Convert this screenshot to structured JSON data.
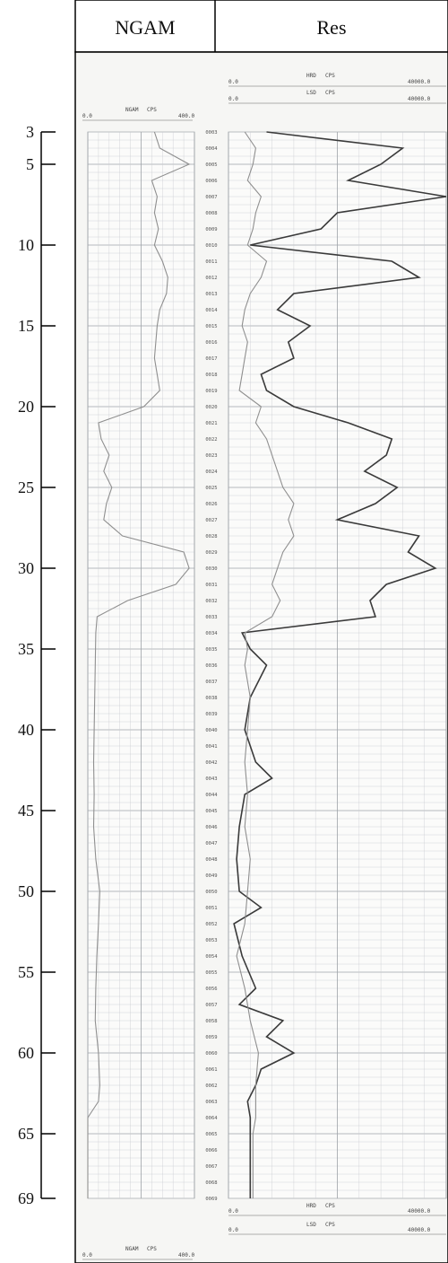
{
  "header": {
    "track1_title": "NGAM",
    "track2_title": "Res"
  },
  "colors": {
    "paper": "#f6f6f4",
    "grid": "#c9ccd0",
    "grid_major": "#9ea3a8",
    "curve_dark": "#3a3a3a",
    "curve_light": "#8f8f8f"
  },
  "scale_labels": {
    "ngam": {
      "min": "0.0",
      "mnemonic": "NGAM",
      "unit": "CPS",
      "max": "400.0"
    },
    "hrd": {
      "min": "0.0",
      "mnemonic": "HRD",
      "unit": "CPS",
      "max": "40000.0"
    },
    "lsd": {
      "min": "0.0",
      "mnemonic": "LSD",
      "unit": "CPS",
      "max": "40000.0"
    }
  },
  "depth_index_labels": [
    "0003",
    "0004",
    "0005",
    "0006",
    "0007",
    "0008",
    "0009",
    "0010",
    "0011",
    "0012",
    "0013",
    "0014",
    "0015",
    "0016",
    "0017",
    "0018",
    "0019",
    "0020",
    "0021",
    "0022",
    "0023",
    "0024",
    "0025",
    "0026",
    "0027",
    "0028",
    "0029",
    "0030",
    "0031",
    "0032",
    "0033",
    "0034",
    "0035",
    "0036",
    "0037",
    "0038",
    "0039",
    "0040",
    "0041",
    "0042",
    "0043",
    "0044",
    "0045",
    "0046",
    "0047",
    "0048",
    "0049",
    "0050",
    "0051",
    "0052",
    "0053",
    "0054",
    "0055",
    "0056",
    "0057",
    "0058",
    "0059",
    "0060",
    "0061",
    "0062",
    "0063",
    "0064",
    "0065",
    "0066",
    "0067",
    "0068",
    "0069"
  ],
  "chart_data": {
    "type": "line",
    "orientation": "vertical-depth",
    "depth_axis": {
      "range": [
        3,
        69
      ],
      "tick_labels": [
        "3",
        "5",
        "10",
        "15",
        "20",
        "25",
        "30",
        "35",
        "40",
        "45",
        "50",
        "55",
        "60",
        "65",
        "69"
      ],
      "ticks": [
        3,
        5,
        10,
        15,
        20,
        25,
        30,
        35,
        40,
        45,
        50,
        55,
        60,
        65,
        69
      ]
    },
    "tracks": [
      {
        "title": "NGAM",
        "xlim": [
          0,
          400
        ],
        "series": [
          {
            "name": "NGAM",
            "depth": [
              3,
              4,
              5,
              6,
              7,
              8,
              9,
              10,
              11,
              12,
              13,
              14,
              15,
              16,
              17,
              18,
              19,
              20,
              21,
              22,
              23,
              24,
              25,
              26,
              27,
              28,
              29,
              30,
              31,
              32,
              33,
              34,
              36,
              38,
              40,
              42,
              44,
              46,
              48,
              50,
              52,
              54,
              56,
              58,
              60,
              62,
              63,
              64,
              65,
              69
            ],
            "values": [
              250,
              270,
              380,
              240,
              260,
              250,
              265,
              250,
              280,
              300,
              295,
              270,
              260,
              255,
              250,
              260,
              270,
              210,
              40,
              50,
              80,
              60,
              90,
              70,
              60,
              130,
              360,
              380,
              330,
              150,
              35,
              30,
              28,
              26,
              24,
              22,
              24,
              22,
              30,
              45,
              40,
              34,
              30,
              28,
              40,
              45,
              40,
              0,
              0,
              0
            ]
          }
        ]
      },
      {
        "title": "Res",
        "xlim": [
          0,
          40000
        ],
        "series": [
          {
            "name": "HRD",
            "depth": [
              3,
              4,
              5,
              6,
              7,
              8,
              9,
              10,
              11,
              12,
              13,
              14,
              15,
              16,
              17,
              18,
              19,
              20,
              21,
              22,
              23,
              24,
              25,
              26,
              27,
              28,
              29,
              30,
              31,
              32,
              33,
              34,
              35,
              36,
              38,
              40,
              42,
              43,
              44,
              46,
              48,
              50,
              51,
              52,
              54,
              56,
              57,
              58,
              59,
              60,
              61,
              62,
              63,
              64,
              65,
              66,
              69
            ],
            "values": [
              7000,
              32000,
              28000,
              22000,
              40000,
              20000,
              17000,
              4000,
              30000,
              35000,
              12000,
              9000,
              15000,
              11000,
              12000,
              6000,
              7000,
              12000,
              22000,
              30000,
              29000,
              25000,
              31000,
              27000,
              20000,
              35000,
              33000,
              38000,
              29000,
              26000,
              27000,
              2500,
              4000,
              7000,
              4000,
              3000,
              5000,
              8000,
              3000,
              2000,
              1500,
              2000,
              6000,
              1000,
              2500,
              5000,
              2000,
              10000,
              7000,
              12000,
              6000,
              5000,
              3500,
              4000,
              4000,
              4000,
              4000
            ]
          },
          {
            "name": "LSD",
            "depth": [
              3,
              4,
              5,
              6,
              7,
              8,
              9,
              10,
              11,
              12,
              13,
              14,
              15,
              16,
              17,
              18,
              19,
              20,
              21,
              22,
              23,
              24,
              25,
              26,
              27,
              28,
              29,
              30,
              31,
              32,
              33,
              34,
              35,
              36,
              38,
              40,
              42,
              44,
              46,
              48,
              50,
              52,
              54,
              56,
              58,
              60,
              62,
              64,
              65,
              69
            ],
            "values": [
              3000,
              5000,
              4500,
              3500,
              6000,
              5000,
              4500,
              3500,
              7000,
              6000,
              4000,
              3000,
              2500,
              3500,
              3000,
              2500,
              2000,
              6000,
              5000,
              7000,
              8000,
              9000,
              10000,
              12000,
              11000,
              12000,
              10000,
              9000,
              8000,
              9500,
              8000,
              3000,
              3500,
              3000,
              4000,
              3500,
              3000,
              3500,
              3000,
              4000,
              3500,
              3000,
              1500,
              3000,
              4000,
              5500,
              5000,
              5000,
              4500,
              4500
            ]
          }
        ]
      }
    ]
  }
}
